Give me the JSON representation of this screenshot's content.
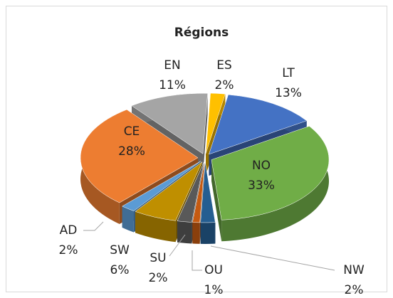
{
  "chart_data": {
    "type": "pie",
    "title": "Régions",
    "categories": [
      "ES",
      "LT",
      "NO",
      "NW",
      "OU",
      "SU",
      "SW",
      "AD",
      "CE",
      "EN"
    ],
    "values": [
      2,
      13,
      33,
      2,
      1,
      2,
      6,
      2,
      28,
      11
    ],
    "value_labels": [
      "2%",
      "13%",
      "33%",
      "2%",
      "1%",
      "2%",
      "6%",
      "2%",
      "28%",
      "11%"
    ],
    "colors": [
      "#ffc000",
      "#4472c4",
      "#70ad47",
      "#255e91",
      "#c55a11",
      "#595959",
      "#bf8f00",
      "#5b9bd5",
      "#ed7d31",
      "#a5a5a5"
    ]
  }
}
